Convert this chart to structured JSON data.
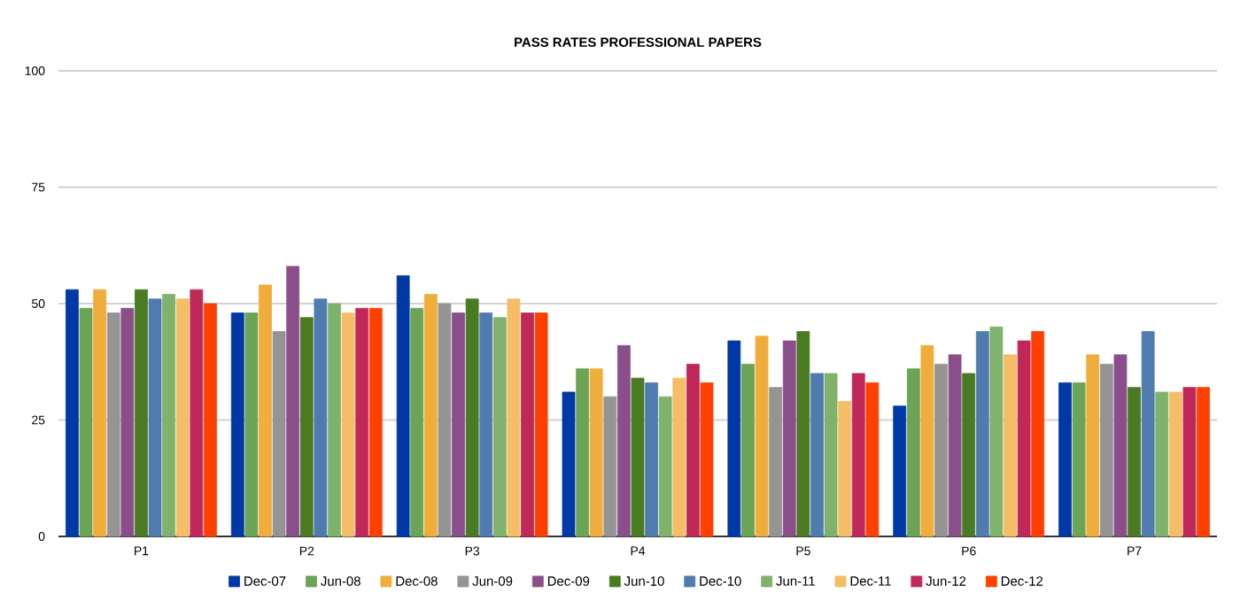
{
  "chart_data": {
    "type": "bar",
    "title": "PASS RATES PROFESSIONAL PAPERS",
    "categories": [
      "P1",
      "P2",
      "P3",
      "P4",
      "P5",
      "P6",
      "P7"
    ],
    "series": [
      {
        "name": "Dec-07",
        "color": "#0039a6",
        "values": [
          53,
          48,
          56,
          31,
          42,
          28,
          33
        ]
      },
      {
        "name": "Jun-08",
        "color": "#6aa454",
        "values": [
          49,
          48,
          49,
          36,
          37,
          36,
          33
        ]
      },
      {
        "name": "Dec-08",
        "color": "#f0ad3c",
        "values": [
          53,
          54,
          52,
          36,
          43,
          41,
          39
        ]
      },
      {
        "name": "Jun-09",
        "color": "#949494",
        "values": [
          48,
          44,
          50,
          30,
          32,
          37,
          37
        ]
      },
      {
        "name": "Dec-09",
        "color": "#8a4f8a",
        "values": [
          49,
          58,
          48,
          41,
          42,
          39,
          39
        ]
      },
      {
        "name": "Jun-10",
        "color": "#4a7a22",
        "values": [
          53,
          47,
          51,
          34,
          44,
          35,
          32
        ]
      },
      {
        "name": "Dec-10",
        "color": "#507bb0",
        "values": [
          51,
          51,
          48,
          33,
          35,
          44,
          44
        ]
      },
      {
        "name": "Jun-11",
        "color": "#7fb26b",
        "values": [
          52,
          50,
          47,
          30,
          35,
          45,
          31
        ]
      },
      {
        "name": "Dec-11",
        "color": "#f5be66",
        "values": [
          51,
          48,
          51,
          34,
          29,
          39,
          31
        ]
      },
      {
        "name": "Jun-12",
        "color": "#c0285a",
        "values": [
          53,
          49,
          48,
          37,
          35,
          42,
          32
        ]
      },
      {
        "name": "Dec-12",
        "color": "#ff4000",
        "values": [
          50,
          49,
          48,
          33,
          33,
          44,
          32
        ]
      }
    ],
    "ylim": [
      0,
      100
    ],
    "yticks": [
      0,
      25,
      50,
      75,
      100
    ],
    "grid": "y",
    "legend": "bottom"
  }
}
